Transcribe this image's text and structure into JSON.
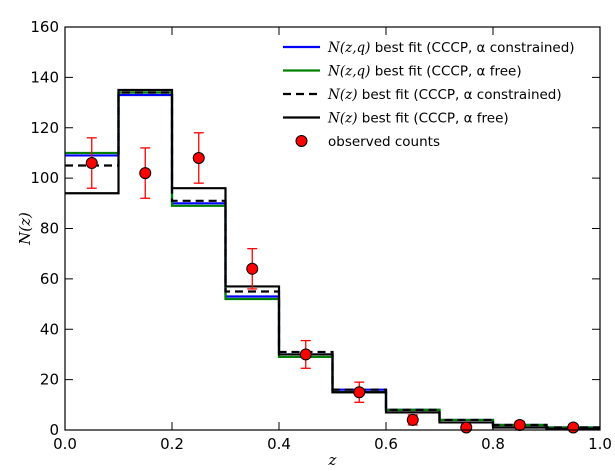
{
  "chart_data": {
    "type": "line",
    "xlabel": "z",
    "ylabel": "N(z)",
    "xlim": [
      0.0,
      1.0
    ],
    "ylim": [
      0,
      160
    ],
    "grid": false,
    "legend_position": "top-right",
    "bin_edges": [
      0.0,
      0.1,
      0.2,
      0.3,
      0.4,
      0.5,
      0.6,
      0.7,
      0.8,
      0.9,
      1.0
    ],
    "x_ticks": [
      "0.0",
      "0.2",
      "0.4",
      "0.6",
      "0.8",
      "1.0"
    ],
    "x_tick_values": [
      0.0,
      0.2,
      0.4,
      0.6,
      0.8,
      1.0
    ],
    "y_ticks": [
      "0",
      "20",
      "40",
      "60",
      "80",
      "100",
      "120",
      "140",
      "160"
    ],
    "y_tick_values": [
      0,
      20,
      40,
      60,
      80,
      100,
      120,
      140,
      160
    ],
    "series": [
      {
        "name": "N(z,q) best fit (CCCP, α constrained)",
        "legend_math": "N(z,q)",
        "legend_text": " best fit (CCCP, α constrained)",
        "color": "#0000ff",
        "style": "solid",
        "values": [
          109,
          133,
          90,
          53,
          30,
          16,
          8,
          4,
          2,
          1
        ]
      },
      {
        "name": "N(z,q) best fit (CCCP, α free)",
        "legend_math": "N(z,q)",
        "legend_text": " best fit (CCCP, α free)",
        "color": "#008000",
        "style": "solid",
        "values": [
          110,
          134,
          89,
          52,
          29,
          15,
          8,
          4,
          2,
          1
        ]
      },
      {
        "name": "N(z) best fit (CCCP, α constrained)",
        "legend_math": "N(z)",
        "legend_text": " best fit (CCCP, α constrained)",
        "color": "#000000",
        "style": "dashed",
        "values": [
          105,
          134,
          91,
          55,
          31,
          16,
          8,
          4,
          2,
          1
        ]
      },
      {
        "name": "N(z) best fit (CCCP, α free)",
        "legend_math": "N(z)",
        "legend_text": " best fit (CCCP, α free)",
        "color": "#000000",
        "style": "solid",
        "values": [
          94,
          135,
          96,
          57,
          30,
          15,
          7,
          3,
          1,
          0.5
        ]
      }
    ],
    "observed": {
      "name": "observed counts",
      "color": "#ff0000",
      "x": [
        0.05,
        0.15,
        0.25,
        0.35,
        0.45,
        0.55,
        0.65,
        0.75,
        0.85,
        0.95
      ],
      "y": [
        106,
        102,
        108,
        64,
        30,
        15,
        4,
        1,
        2,
        1
      ],
      "yerr": [
        10,
        10,
        10,
        8,
        5.5,
        4,
        2,
        1,
        1.4,
        1
      ]
    }
  }
}
